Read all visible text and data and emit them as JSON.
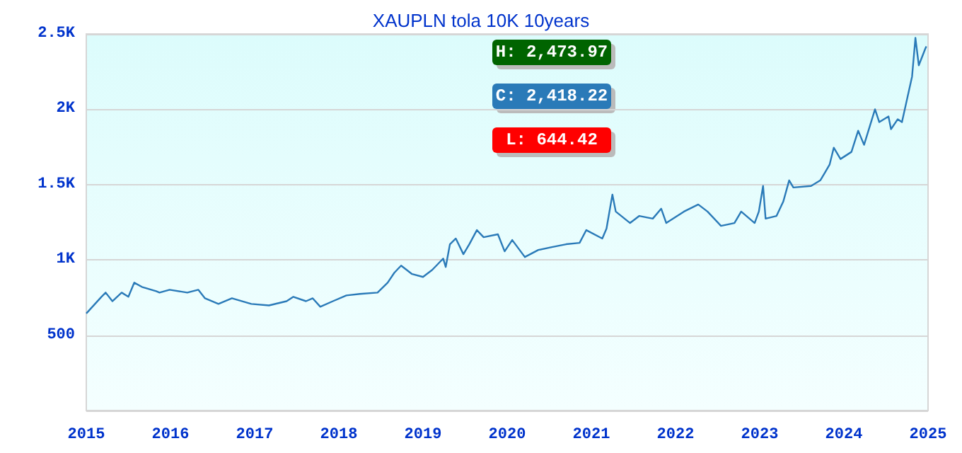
{
  "chart_data": {
    "type": "line",
    "title": "XAUPLN tola 10K 10years",
    "x": [
      2015.0,
      2015.18,
      2015.23,
      2015.31,
      2015.42,
      2015.5,
      2015.57,
      2015.66,
      2015.83,
      2015.87,
      2015.99,
      2016.2,
      2016.33,
      2016.41,
      2016.57,
      2016.73,
      2016.96,
      2017.17,
      2017.38,
      2017.46,
      2017.61,
      2017.69,
      2017.78,
      2017.93,
      2018.09,
      2018.25,
      2018.46,
      2018.58,
      2018.66,
      2018.74,
      2018.87,
      2019.0,
      2019.11,
      2019.24,
      2019.27,
      2019.32,
      2019.39,
      2019.48,
      2019.55,
      2019.64,
      2019.72,
      2019.89,
      2019.97,
      2020.06,
      2020.21,
      2020.37,
      2020.53,
      2020.7,
      2020.86,
      2020.94,
      2021.13,
      2021.18,
      2021.25,
      2021.29,
      2021.46,
      2021.57,
      2021.73,
      2021.83,
      2021.89,
      2022.1,
      2022.27,
      2022.38,
      2022.54,
      2022.7,
      2022.78,
      2022.94,
      2022.99,
      2023.04,
      2023.07,
      2023.2,
      2023.28,
      2023.35,
      2023.4,
      2023.61,
      2023.72,
      2023.77,
      2023.83,
      2023.88,
      2023.96,
      2024.09,
      2024.17,
      2024.24,
      2024.37,
      2024.42,
      2024.53,
      2024.56,
      2024.64,
      2024.69,
      2024.81,
      2024.85,
      2024.89,
      2024.97,
      2024.98
    ],
    "series": [
      {
        "color": "#2a7ab8",
        "values": [
          644.42,
          755,
          783,
          726,
          783,
          755,
          849,
          821,
          792,
          783,
          802,
          783,
          802,
          745,
          708,
          745,
          708,
          698,
          726,
          755,
          726,
          745,
          689,
          726,
          764,
          774,
          783,
          849,
          915,
          962,
          906,
          887,
          934,
          1009,
          953,
          1104,
          1142,
          1038,
          1104,
          1198,
          1151,
          1170,
          1057,
          1132,
          1019,
          1066,
          1085,
          1104,
          1113,
          1198,
          1142,
          1208,
          1434,
          1321,
          1245,
          1292,
          1274,
          1340,
          1245,
          1321,
          1368,
          1321,
          1226,
          1245,
          1321,
          1245,
          1321,
          1491,
          1274,
          1292,
          1387,
          1528,
          1481,
          1491,
          1528,
          1575,
          1632,
          1745,
          1670,
          1717,
          1858,
          1764,
          2000,
          1915,
          1953,
          1868,
          1934,
          1915,
          2217,
          2473.97,
          2292,
          2406,
          2418.22
        ]
      }
    ],
    "xlim": [
      2015,
      2025
    ],
    "xticks": [
      2015,
      2016,
      2017,
      2018,
      2019,
      2020,
      2021,
      2022,
      2023,
      2024,
      2025
    ],
    "ylim": [
      0,
      2500
    ],
    "yticks": [
      {
        "value": 0,
        "label": null
      },
      500,
      {
        "value": 1000,
        "label": "1K"
      },
      {
        "value": 1500,
        "label": "1.5K"
      },
      {
        "value": 2000,
        "label": "2K"
      },
      {
        "value": 2500,
        "label": "2.5K"
      }
    ],
    "annotations": [
      "H: 2,473.97",
      "C: 2,418.22",
      "L: 644.42"
    ],
    "grid": "y",
    "marker": "none",
    "line_style": "solid"
  }
}
